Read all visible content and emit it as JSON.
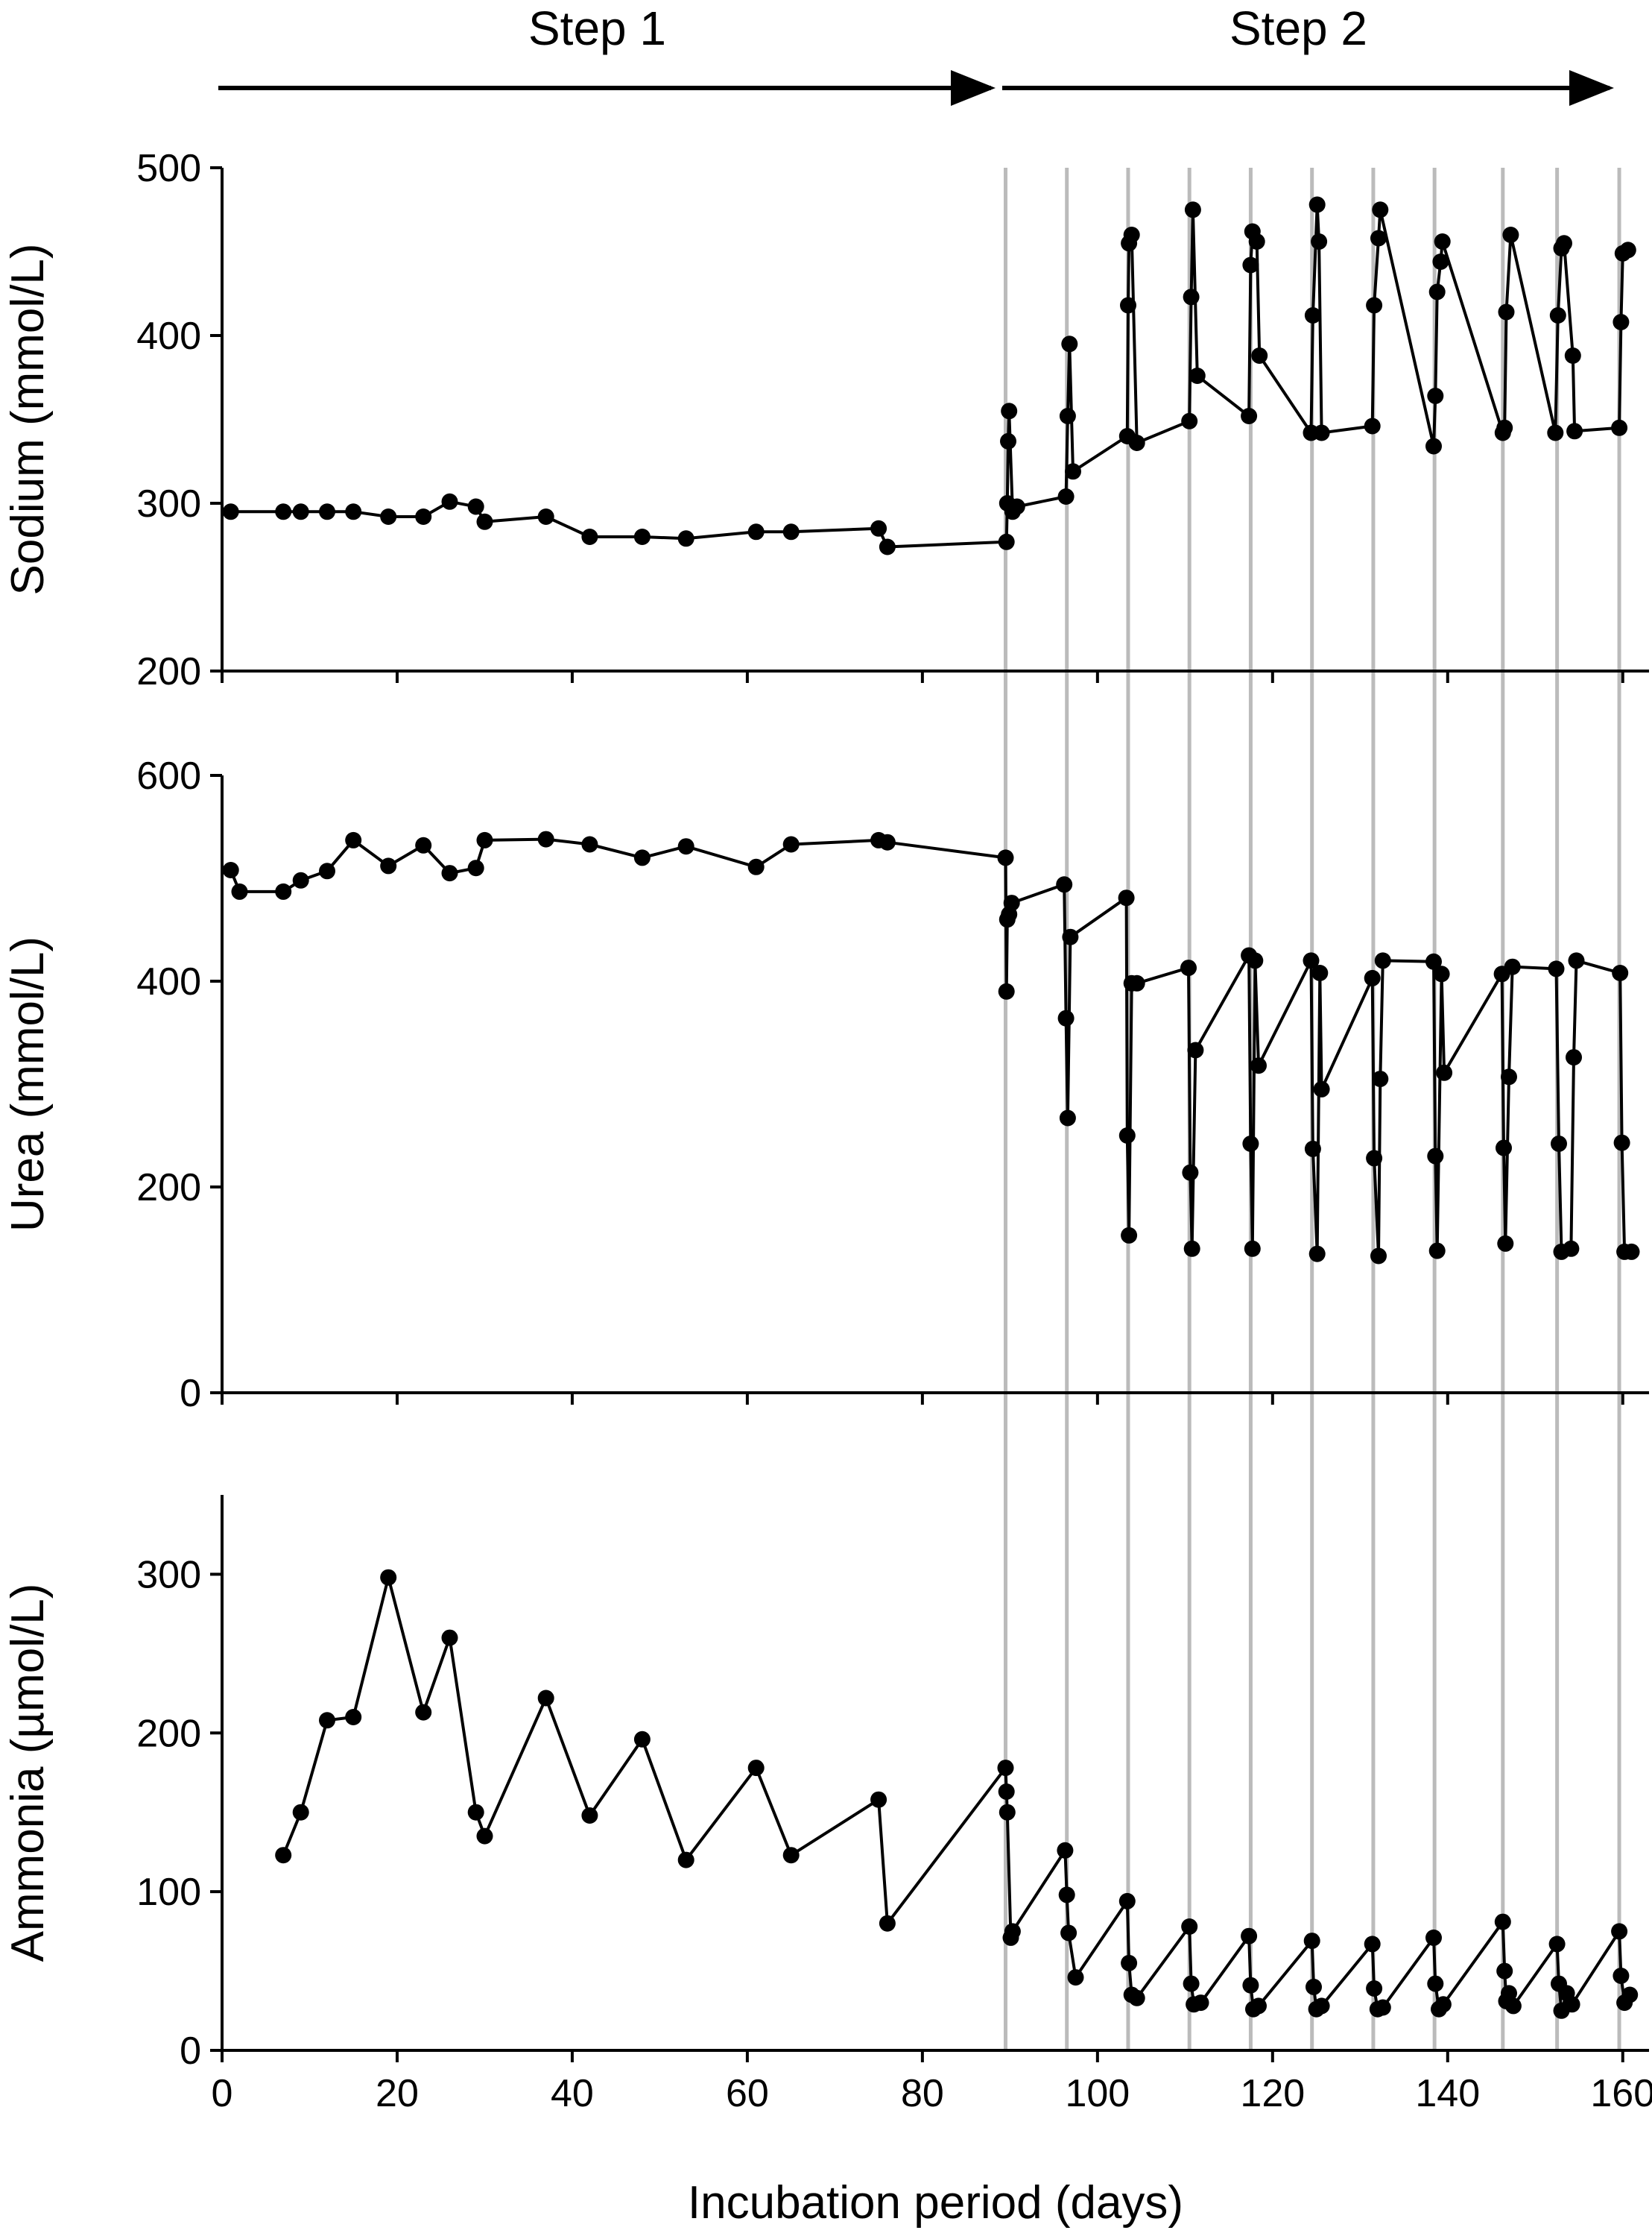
{
  "figure": {
    "xlabel": "Incubation period (days)",
    "x_ticks": [
      0,
      20,
      40,
      60,
      80,
      100,
      120,
      140,
      160
    ],
    "xlim": [
      0,
      163
    ],
    "steps": [
      {
        "label": "Step 1",
        "start": 0,
        "end": 89
      },
      {
        "label": "Step 2",
        "start": 90,
        "end": 160
      }
    ],
    "vertical_reference_lines": [
      89.5,
      96.5,
      103.5,
      110.5,
      117.5,
      124.5,
      131.5,
      138.5,
      146.3,
      152.5,
      159.6
    ],
    "colors": {
      "line": "#000000",
      "marker": "#000000",
      "reference_line": "#bbbbbb",
      "axis": "#000000"
    }
  },
  "chart_data": [
    {
      "type": "line",
      "ylabel": "Sodium (mmol/L)",
      "ylim": [
        200,
        500
      ],
      "y_ticks": [
        200,
        300,
        400,
        500
      ],
      "series": [
        {
          "x": [
            1,
            7,
            9,
            12,
            15,
            19,
            23,
            26,
            29,
            30,
            37,
            42,
            48,
            53,
            61,
            65,
            75,
            76,
            89.6,
            89.7,
            89.8,
            89.9,
            90.3,
            90.8,
            96.4,
            96.6,
            96.8,
            97.2,
            103.4,
            103.5,
            103.6,
            103.9,
            104.5,
            110.5,
            110.7,
            110.9,
            111.4,
            117.3,
            117.5,
            117.7,
            118.2,
            118.5,
            124.4,
            124.6,
            125.1,
            125.3,
            125.6,
            131.4,
            131.6,
            132.1,
            132.3,
            138.4,
            138.6,
            138.8,
            139.2,
            139.4,
            146.3,
            146.5,
            146.7,
            147.2,
            152.3,
            152.6,
            153.0,
            153.3,
            154.3,
            154.5,
            159.6,
            159.8,
            160.0,
            160.6
          ],
          "y": [
            295,
            295,
            295,
            295,
            295,
            292,
            292,
            301,
            298,
            289,
            292,
            280,
            280,
            279,
            283,
            283,
            285,
            274,
            277,
            300,
            337,
            355,
            295,
            298,
            304,
            352,
            395,
            319,
            340,
            418,
            455,
            460,
            336,
            349,
            423,
            475,
            376,
            352,
            442,
            462,
            456,
            388,
            342,
            412,
            478,
            456,
            342,
            346,
            418,
            458,
            475,
            334,
            364,
            426,
            444,
            456,
            342,
            345,
            414,
            460,
            342,
            412,
            452,
            455,
            388,
            343,
            345,
            408,
            449,
            451
          ]
        }
      ]
    },
    {
      "type": "line",
      "ylabel": "Urea (mmol/L)",
      "ylim": [
        0,
        600
      ],
      "y_ticks": [
        0,
        200,
        400,
        600
      ],
      "series": [
        {
          "x": [
            1,
            2,
            7,
            9,
            12,
            15,
            19,
            23,
            26,
            29,
            30,
            37,
            42,
            48,
            53,
            61,
            65,
            75,
            76,
            89.5,
            89.6,
            89.7,
            89.9,
            90.2,
            96.2,
            96.4,
            96.6,
            96.9,
            103.3,
            103.4,
            103.6,
            103.9,
            104.5,
            110.4,
            110.6,
            110.8,
            111.2,
            117.3,
            117.5,
            117.7,
            118.0,
            118.4,
            124.4,
            124.6,
            125.1,
            125.4,
            125.6,
            131.4,
            131.6,
            132.1,
            132.3,
            132.6,
            138.4,
            138.6,
            138.8,
            139.3,
            139.6,
            146.2,
            146.4,
            146.6,
            147.0,
            147.4,
            152.4,
            152.7,
            153.0,
            154.1,
            154.4,
            154.7,
            159.7,
            159.9,
            160.2,
            161.0
          ],
          "y": [
            508,
            487,
            487,
            498,
            507,
            537,
            512,
            532,
            505,
            510,
            537,
            538,
            533,
            520,
            531,
            511,
            533,
            537,
            535,
            520,
            390,
            460,
            465,
            476,
            494,
            364,
            267,
            443,
            481,
            250,
            153,
            398,
            398,
            413,
            214,
            140,
            333,
            425,
            242,
            140,
            420,
            318,
            420,
            237,
            135,
            408,
            295,
            403,
            228,
            133,
            305,
            420,
            419,
            230,
            138,
            407,
            311,
            407,
            238,
            145,
            307,
            414,
            412,
            242,
            137,
            140,
            326,
            420,
            408,
            243,
            137,
            137
          ]
        }
      ]
    },
    {
      "type": "line",
      "ylabel": "Ammonia (µmol/L)",
      "ylim": [
        0,
        350
      ],
      "y_ticks": [
        0,
        100,
        200,
        300
      ],
      "series": [
        {
          "x": [
            7,
            9,
            12,
            15,
            19,
            23,
            26,
            29,
            30,
            37,
            42,
            48,
            53,
            61,
            65,
            75,
            76,
            89.5,
            89.6,
            89.7,
            90.1,
            90.3,
            96.3,
            96.5,
            96.7,
            97.5,
            103.4,
            103.6,
            103.9,
            104.5,
            110.5,
            110.7,
            111.0,
            111.8,
            117.3,
            117.5,
            117.8,
            118.4,
            124.5,
            124.7,
            125.0,
            125.6,
            131.4,
            131.6,
            132.0,
            132.6,
            138.4,
            138.6,
            139.0,
            139.5,
            146.3,
            146.5,
            146.7,
            147.0,
            147.5,
            152.5,
            152.7,
            153.0,
            153.6,
            154.2,
            159.6,
            159.8,
            160.2,
            160.8
          ],
          "y": [
            123,
            150,
            208,
            210,
            298,
            213,
            260,
            150,
            135,
            222,
            148,
            196,
            120,
            178,
            123,
            158,
            80,
            178,
            163,
            150,
            71,
            75,
            126,
            98,
            74,
            46,
            94,
            55,
            35,
            33,
            78,
            42,
            29,
            30,
            72,
            41,
            26,
            28,
            69,
            40,
            26,
            28,
            67,
            39,
            26,
            27,
            71,
            42,
            26,
            29,
            81,
            50,
            31,
            36,
            28,
            67,
            42,
            25,
            36,
            29,
            75,
            47,
            30,
            35
          ]
        }
      ]
    }
  ]
}
